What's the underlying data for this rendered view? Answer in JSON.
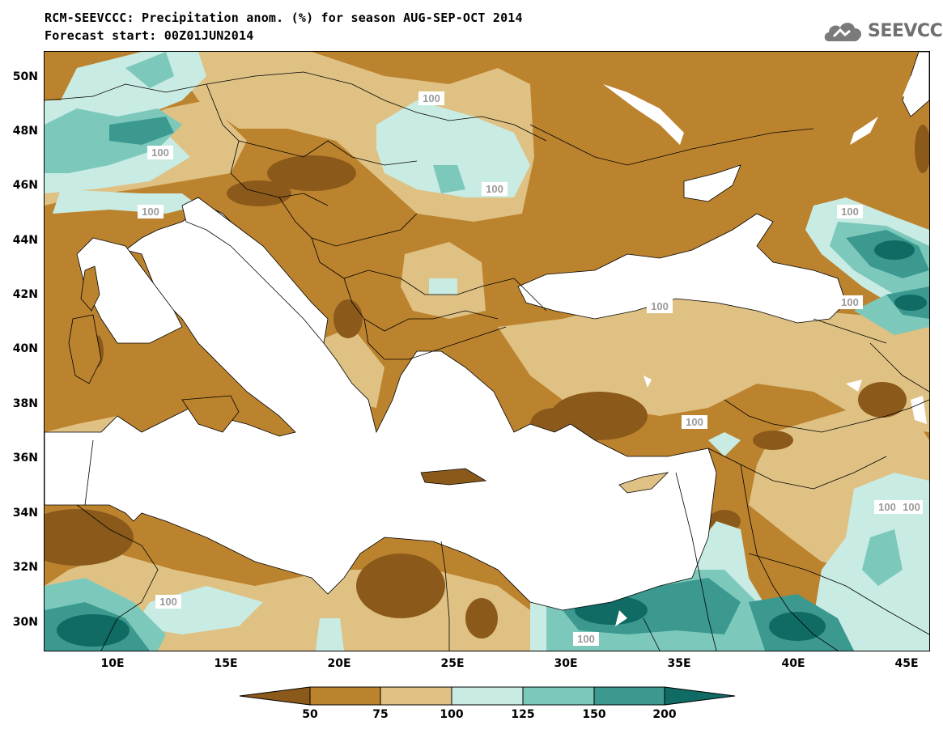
{
  "title": {
    "line1": "RCM-SEEVCCC: Precipitation anom. (%) for season AUG-SEP-OCT 2014",
    "line2": "Forecast start: 00Z01JUN2014"
  },
  "logo": {
    "text": "SEEVCCC",
    "icon": "cloud-icon"
  },
  "map": {
    "lat_range": [
      29,
      51
    ],
    "lon_range": [
      7,
      46
    ],
    "lat_ticks": [
      "50N",
      "48N",
      "46N",
      "44N",
      "42N",
      "40N",
      "38N",
      "36N",
      "34N",
      "32N",
      "30N"
    ],
    "lon_ticks": [
      "10E",
      "15E",
      "20E",
      "25E",
      "30E",
      "35E",
      "40E",
      "45E"
    ],
    "contour_labels": [
      "100",
      "100",
      "100",
      "100",
      "100",
      "100",
      "100",
      "100",
      "100",
      "100",
      "100",
      "100"
    ],
    "colors": {
      "below_50": "#8b5a1b",
      "50_75": "#bc832f",
      "75_100": "#dfc183",
      "100_125": "#c8ebe3",
      "125_150": "#7cc9bb",
      "150_200": "#3b9990",
      "above_200": "#0f6b63",
      "sea": "#ffffff"
    }
  },
  "colorbar": {
    "labels": [
      "50",
      "75",
      "100",
      "125",
      "150",
      "200"
    ]
  }
}
